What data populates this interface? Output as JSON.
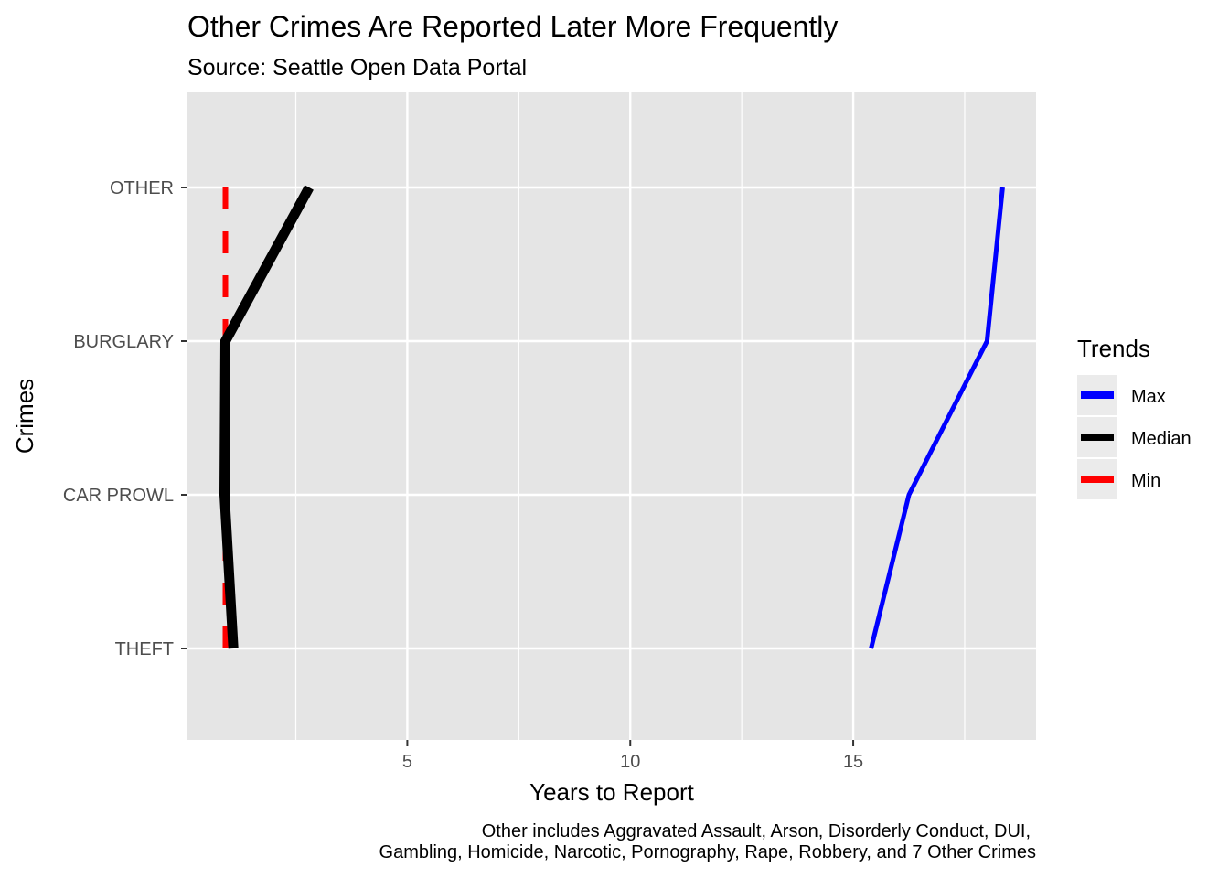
{
  "chart_data": {
    "type": "line",
    "title": "Other Crimes Are Reported Later More Frequently",
    "subtitle": "Source: Seattle Open Data Portal",
    "xlabel": "Years to Report",
    "ylabel": "Crimes",
    "caption": [
      "Other includes Aggravated Assault, Arson, Disorderly Conduct, DUI,",
      "Gambling, Homicide, Narcotic, Pornography, Rape, Robbery, and 7 Other Crimes"
    ],
    "categories": [
      "THEFT",
      "CAR PROWL",
      "BURGLARY",
      "OTHER"
    ],
    "xlim": [
      0.07,
      19.1
    ],
    "x_ticks": [
      5,
      10,
      15
    ],
    "grid": true,
    "legend": {
      "title": "Trends",
      "placement": "right"
    },
    "series": [
      {
        "name": "Max",
        "color": "#0000FF",
        "style": "solid",
        "values": [
          15.4,
          16.25,
          18.0,
          18.35
        ]
      },
      {
        "name": "Median",
        "color": "#000000",
        "style": "solid",
        "values": [
          1.1,
          0.9,
          0.92,
          2.8
        ]
      },
      {
        "name": "Min",
        "color": "#FF0000",
        "style": "dashed",
        "values": [
          0.92,
          0.92,
          0.92,
          0.92
        ]
      }
    ]
  }
}
